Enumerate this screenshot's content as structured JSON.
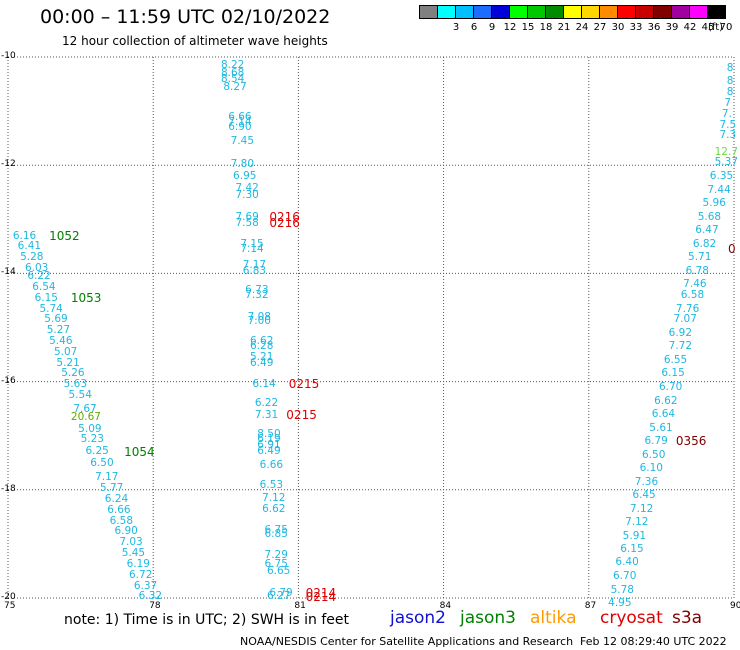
{
  "header": {
    "title": "00:00 – 11:59 UTC 02/10/2022",
    "subtitle": "12 hour collection of altimeter wave heights"
  },
  "legend": {
    "unit": "(ft)",
    "items": [
      {
        "label": "",
        "color": "#808080"
      },
      {
        "label": "3",
        "color": "#00ffff"
      },
      {
        "label": "6",
        "color": "#00bfff"
      },
      {
        "label": "9",
        "color": "#1e6cff"
      },
      {
        "label": "12",
        "color": "#0000d8"
      },
      {
        "label": "15",
        "color": "#00ff00"
      },
      {
        "label": "18",
        "color": "#00c800"
      },
      {
        "label": "21",
        "color": "#008c00"
      },
      {
        "label": "24",
        "color": "#ffff00"
      },
      {
        "label": "27",
        "color": "#ffd700"
      },
      {
        "label": "30",
        "color": "#ff8c00"
      },
      {
        "label": "33",
        "color": "#ff0000"
      },
      {
        "label": "36",
        "color": "#c80000"
      },
      {
        "label": "39",
        "color": "#800000"
      },
      {
        "label": "42",
        "color": "#a000a0"
      },
      {
        "label": "45",
        "color": "#ff00ff"
      },
      {
        "label": "70",
        "color": "#000000"
      }
    ]
  },
  "map": {
    "lon_range": [
      75,
      90
    ],
    "lat_range": [
      -20,
      -10
    ],
    "lon_ticks": [
      "75",
      "78",
      "81",
      "84",
      "87",
      "90"
    ],
    "lat_ticks": [
      "-10",
      "-12",
      "-14",
      "-16",
      "-18",
      "-20"
    ],
    "colors": {
      "obs": "#1fb8e0",
      "jason3": "#008000",
      "cryosat": "#e00000",
      "s3a": "#800000",
      "yellowgreen": "#66aa00",
      "lightgreen": "#66dd44"
    },
    "points": [
      {
        "text": "8.22",
        "lon": 79.4,
        "lat": -10.15,
        "c": "obs"
      },
      {
        "text": "8.68",
        "lon": 79.4,
        "lat": -10.3,
        "c": "obs"
      },
      {
        "text": "8.54",
        "lon": 79.4,
        "lat": -10.4,
        "c": "obs"
      },
      {
        "text": "8.27",
        "lon": 79.45,
        "lat": -10.55,
        "c": "obs"
      },
      {
        "text": "6.66",
        "lon": 79.55,
        "lat": -11.1,
        "c": "obs"
      },
      {
        "text": "7.14",
        "lon": 79.55,
        "lat": -11.2,
        "c": "obs"
      },
      {
        "text": "6.90",
        "lon": 79.55,
        "lat": -11.3,
        "c": "obs"
      },
      {
        "text": "7.45",
        "lon": 79.6,
        "lat": -11.55,
        "c": "obs"
      },
      {
        "text": "7.80",
        "lon": 79.6,
        "lat": -11.97,
        "c": "obs"
      },
      {
        "text": "6.95",
        "lon": 79.65,
        "lat": -12.2,
        "c": "obs"
      },
      {
        "text": "7.42",
        "lon": 79.7,
        "lat": -12.42,
        "c": "obs"
      },
      {
        "text": "7.30",
        "lon": 79.7,
        "lat": -12.55,
        "c": "obs"
      },
      {
        "text": "7.69",
        "lon": 79.7,
        "lat": -12.95,
        "c": "obs"
      },
      {
        "text": "7.58",
        "lon": 79.7,
        "lat": -13.07,
        "c": "obs"
      },
      {
        "text": "7.15",
        "lon": 79.8,
        "lat": -13.45,
        "c": "obs"
      },
      {
        "text": "7.14",
        "lon": 79.8,
        "lat": -13.55,
        "c": "obs"
      },
      {
        "text": "7.17",
        "lon": 79.85,
        "lat": -13.85,
        "c": "obs"
      },
      {
        "text": "6.83",
        "lon": 79.85,
        "lat": -13.95,
        "c": "obs"
      },
      {
        "text": "6.73",
        "lon": 79.9,
        "lat": -14.3,
        "c": "obs"
      },
      {
        "text": "7.32",
        "lon": 79.9,
        "lat": -14.4,
        "c": "obs"
      },
      {
        "text": "7.08",
        "lon": 79.95,
        "lat": -14.8,
        "c": "obs"
      },
      {
        "text": "7.00",
        "lon": 79.95,
        "lat": -14.88,
        "c": "obs"
      },
      {
        "text": "6.62",
        "lon": 80.0,
        "lat": -15.25,
        "c": "obs"
      },
      {
        "text": "6.28",
        "lon": 80.0,
        "lat": -15.35,
        "c": "obs"
      },
      {
        "text": "5.21",
        "lon": 80.0,
        "lat": -15.55,
        "c": "obs"
      },
      {
        "text": "6.49",
        "lon": 80.0,
        "lat": -15.65,
        "c": "obs"
      },
      {
        "text": "6.14",
        "lon": 80.05,
        "lat": -16.05,
        "c": "obs"
      },
      {
        "text": "6.22",
        "lon": 80.1,
        "lat": -16.4,
        "c": "obs"
      },
      {
        "text": "7.31",
        "lon": 80.1,
        "lat": -16.62,
        "c": "obs"
      },
      {
        "text": "8.50",
        "lon": 80.15,
        "lat": -16.97,
        "c": "obs"
      },
      {
        "text": "6.19",
        "lon": 80.15,
        "lat": -17.07,
        "c": "obs"
      },
      {
        "text": "6.91",
        "lon": 80.15,
        "lat": -17.17,
        "c": "obs"
      },
      {
        "text": "6.49",
        "lon": 80.15,
        "lat": -17.28,
        "c": "obs"
      },
      {
        "text": "6.66",
        "lon": 80.2,
        "lat": -17.55,
        "c": "obs"
      },
      {
        "text": "6.53",
        "lon": 80.2,
        "lat": -17.92,
        "c": "obs"
      },
      {
        "text": "7.12",
        "lon": 80.25,
        "lat": -18.15,
        "c": "obs"
      },
      {
        "text": "6.62",
        "lon": 80.25,
        "lat": -18.35,
        "c": "obs"
      },
      {
        "text": "6.75",
        "lon": 80.3,
        "lat": -18.75,
        "c": "obs"
      },
      {
        "text": "6.85",
        "lon": 80.3,
        "lat": -18.82,
        "c": "obs"
      },
      {
        "text": "7.29",
        "lon": 80.3,
        "lat": -19.2,
        "c": "obs"
      },
      {
        "text": "6.75",
        "lon": 80.3,
        "lat": -19.37,
        "c": "obs"
      },
      {
        "text": "6.65",
        "lon": 80.35,
        "lat": -19.5,
        "c": "obs"
      },
      {
        "text": "6.79",
        "lon": 80.4,
        "lat": -19.9,
        "c": "obs"
      },
      {
        "text": "6.27",
        "lon": 80.35,
        "lat": -19.97,
        "c": "obs"
      },
      {
        "text": "6.16",
        "lon": 75.1,
        "lat": -13.3,
        "c": "obs"
      },
      {
        "text": "6.41",
        "lon": 75.2,
        "lat": -13.5,
        "c": "obs"
      },
      {
        "text": "5.28",
        "lon": 75.25,
        "lat": -13.7,
        "c": "obs"
      },
      {
        "text": "6.03",
        "lon": 75.35,
        "lat": -13.9,
        "c": "obs"
      },
      {
        "text": "6.22",
        "lon": 75.4,
        "lat": -14.05,
        "c": "obs"
      },
      {
        "text": "6.54",
        "lon": 75.5,
        "lat": -14.25,
        "c": "obs"
      },
      {
        "text": "6.15",
        "lon": 75.55,
        "lat": -14.45,
        "c": "obs"
      },
      {
        "text": "5.74",
        "lon": 75.65,
        "lat": -14.65,
        "c": "obs"
      },
      {
        "text": "5.69",
        "lon": 75.75,
        "lat": -14.85,
        "c": "obs"
      },
      {
        "text": "5.27",
        "lon": 75.8,
        "lat": -15.05,
        "c": "obs"
      },
      {
        "text": "5.46",
        "lon": 75.85,
        "lat": -15.25,
        "c": "obs"
      },
      {
        "text": "5.07",
        "lon": 75.95,
        "lat": -15.45,
        "c": "obs"
      },
      {
        "text": "5.21",
        "lon": 76.0,
        "lat": -15.65,
        "c": "obs"
      },
      {
        "text": "5.26",
        "lon": 76.1,
        "lat": -15.85,
        "c": "obs"
      },
      {
        "text": "5.63",
        "lon": 76.15,
        "lat": -16.05,
        "c": "obs"
      },
      {
        "text": "5.54",
        "lon": 76.25,
        "lat": -16.25,
        "c": "obs"
      },
      {
        "text": "7.67",
        "lon": 76.35,
        "lat": -16.5,
        "c": "obs"
      },
      {
        "text": "20.67",
        "lon": 76.3,
        "lat": -16.65,
        "c": "yellowgreen"
      },
      {
        "text": "5.09",
        "lon": 76.45,
        "lat": -16.87,
        "c": "obs"
      },
      {
        "text": "5.23",
        "lon": 76.5,
        "lat": -17.07,
        "c": "obs"
      },
      {
        "text": "6.25",
        "lon": 76.6,
        "lat": -17.28,
        "c": "obs"
      },
      {
        "text": "6.50",
        "lon": 76.7,
        "lat": -17.5,
        "c": "obs"
      },
      {
        "text": "7.17",
        "lon": 76.8,
        "lat": -17.77,
        "c": "obs"
      },
      {
        "text": "5.77",
        "lon": 76.9,
        "lat": -17.97,
        "c": "obs"
      },
      {
        "text": "6.24",
        "lon": 77.0,
        "lat": -18.17,
        "c": "obs"
      },
      {
        "text": "6.66",
        "lon": 77.05,
        "lat": -18.37,
        "c": "obs"
      },
      {
        "text": "6.58",
        "lon": 77.1,
        "lat": -18.57,
        "c": "obs"
      },
      {
        "text": "6.90",
        "lon": 77.2,
        "lat": -18.77,
        "c": "obs"
      },
      {
        "text": "7.03",
        "lon": 77.3,
        "lat": -18.97,
        "c": "obs"
      },
      {
        "text": "5.45",
        "lon": 77.35,
        "lat": -19.17,
        "c": "obs"
      },
      {
        "text": "6.19",
        "lon": 77.45,
        "lat": -19.37,
        "c": "obs"
      },
      {
        "text": "6.72",
        "lon": 77.5,
        "lat": -19.57,
        "c": "obs"
      },
      {
        "text": "6.37",
        "lon": 77.6,
        "lat": -19.77,
        "c": "obs"
      },
      {
        "text": "6.32",
        "lon": 77.7,
        "lat": -19.97,
        "c": "obs"
      },
      {
        "text": "8",
        "lon": 89.85,
        "lat": -10.2,
        "c": "obs"
      },
      {
        "text": "8",
        "lon": 89.85,
        "lat": -10.45,
        "c": "obs"
      },
      {
        "text": "8",
        "lon": 89.85,
        "lat": -10.65,
        "c": "obs"
      },
      {
        "text": "7",
        "lon": 89.8,
        "lat": -10.85,
        "c": "obs"
      },
      {
        "text": "7.",
        "lon": 89.75,
        "lat": -11.05,
        "c": "obs"
      },
      {
        "text": "7.5",
        "lon": 89.7,
        "lat": -11.25,
        "c": "obs"
      },
      {
        "text": "7.3",
        "lon": 89.7,
        "lat": -11.45,
        "c": "obs"
      },
      {
        "text": "12.7",
        "lon": 89.6,
        "lat": -11.75,
        "c": "lightgreen"
      },
      {
        "text": "5.37",
        "lon": 89.6,
        "lat": -11.95,
        "c": "obs"
      },
      {
        "text": "6.35",
        "lon": 89.5,
        "lat": -12.2,
        "c": "obs"
      },
      {
        "text": "7.44",
        "lon": 89.45,
        "lat": -12.45,
        "c": "obs"
      },
      {
        "text": "5.96",
        "lon": 89.35,
        "lat": -12.7,
        "c": "obs"
      },
      {
        "text": "5.68",
        "lon": 89.25,
        "lat": -12.95,
        "c": "obs"
      },
      {
        "text": "6.47",
        "lon": 89.2,
        "lat": -13.2,
        "c": "obs"
      },
      {
        "text": "6.82",
        "lon": 89.15,
        "lat": -13.45,
        "c": "obs"
      },
      {
        "text": "5.71",
        "lon": 89.05,
        "lat": -13.7,
        "c": "obs"
      },
      {
        "text": "6.78",
        "lon": 89.0,
        "lat": -13.95,
        "c": "obs"
      },
      {
        "text": "7.46",
        "lon": 88.95,
        "lat": -14.2,
        "c": "obs"
      },
      {
        "text": "6.58",
        "lon": 88.9,
        "lat": -14.4,
        "c": "obs"
      },
      {
        "text": "7.76",
        "lon": 88.8,
        "lat": -14.65,
        "c": "obs"
      },
      {
        "text": "7.07",
        "lon": 88.75,
        "lat": -14.85,
        "c": "obs"
      },
      {
        "text": "6.92",
        "lon": 88.65,
        "lat": -15.1,
        "c": "obs"
      },
      {
        "text": "7.72",
        "lon": 88.65,
        "lat": -15.35,
        "c": "obs"
      },
      {
        "text": "6.55",
        "lon": 88.55,
        "lat": -15.6,
        "c": "obs"
      },
      {
        "text": "6.15",
        "lon": 88.5,
        "lat": -15.85,
        "c": "obs"
      },
      {
        "text": "6.70",
        "lon": 88.45,
        "lat": -16.1,
        "c": "obs"
      },
      {
        "text": "6.62",
        "lon": 88.35,
        "lat": -16.35,
        "c": "obs"
      },
      {
        "text": "6.64",
        "lon": 88.3,
        "lat": -16.6,
        "c": "obs"
      },
      {
        "text": "5.61",
        "lon": 88.25,
        "lat": -16.85,
        "c": "obs"
      },
      {
        "text": "6.79",
        "lon": 88.15,
        "lat": -17.1,
        "c": "obs"
      },
      {
        "text": "6.50",
        "lon": 88.1,
        "lat": -17.35,
        "c": "obs"
      },
      {
        "text": "6.10",
        "lon": 88.05,
        "lat": -17.6,
        "c": "obs"
      },
      {
        "text": "7.36",
        "lon": 87.95,
        "lat": -17.85,
        "c": "obs"
      },
      {
        "text": "6.45",
        "lon": 87.9,
        "lat": -18.1,
        "c": "obs"
      },
      {
        "text": "7.12",
        "lon": 87.85,
        "lat": -18.35,
        "c": "obs"
      },
      {
        "text": "7.12",
        "lon": 87.75,
        "lat": -18.6,
        "c": "obs"
      },
      {
        "text": "5.91",
        "lon": 87.7,
        "lat": -18.85,
        "c": "obs"
      },
      {
        "text": "6.15",
        "lon": 87.65,
        "lat": -19.1,
        "c": "obs"
      },
      {
        "text": "6.40",
        "lon": 87.55,
        "lat": -19.33,
        "c": "obs"
      },
      {
        "text": "6.70",
        "lon": 87.5,
        "lat": -19.6,
        "c": "obs"
      },
      {
        "text": "5.78",
        "lon": 87.45,
        "lat": -19.85,
        "c": "obs"
      },
      {
        "text": "4.95",
        "lon": 87.4,
        "lat": -20.1,
        "c": "obs"
      }
    ],
    "passes": [
      {
        "text": "1052",
        "lon": 75.85,
        "lat": -13.3,
        "c": "jason3"
      },
      {
        "text": "1053",
        "lon": 76.3,
        "lat": -14.45,
        "c": "jason3"
      },
      {
        "text": "1054",
        "lon": 77.4,
        "lat": -17.3,
        "c": "jason3"
      },
      {
        "text": "0216",
        "lon": 80.4,
        "lat": -12.95,
        "c": "cryosat"
      },
      {
        "text": "0216",
        "lon": 80.4,
        "lat": -13.07,
        "c": "cryosat"
      },
      {
        "text": "0215",
        "lon": 80.8,
        "lat": -16.05,
        "c": "cryosat"
      },
      {
        "text": "0215",
        "lon": 80.75,
        "lat": -16.62,
        "c": "cryosat"
      },
      {
        "text": "0214",
        "lon": 81.15,
        "lat": -19.9,
        "c": "cryosat"
      },
      {
        "text": "0214",
        "lon": 81.15,
        "lat": -19.98,
        "c": "cryosat"
      },
      {
        "text": "0356",
        "lon": 88.8,
        "lat": -17.1,
        "c": "s3a"
      },
      {
        "text": "0",
        "lon": 90.05,
        "lat": -13.55,
        "c": "s3a"
      }
    ]
  },
  "footer": {
    "note": "note:  1) Time is in UTC; 2) SWH is in feet",
    "satellites": [
      {
        "label": "jason2",
        "color": "#1010d0"
      },
      {
        "label": "jason3",
        "color": "#008000"
      },
      {
        "label": "altika",
        "color": "#ff9900"
      },
      {
        "label": "cryosat",
        "color": "#e00000"
      },
      {
        "label": "s3a",
        "color": "#800000"
      }
    ],
    "credit": "NOAA/NESDIS Center for Satellite Applications and Research",
    "timestamp": "Feb 12 08:29:40 UTC 2022"
  }
}
